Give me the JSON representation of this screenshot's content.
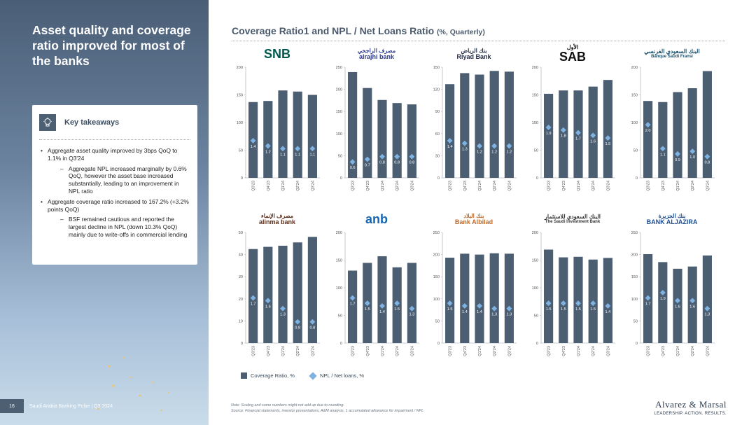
{
  "headline": "Asset quality and coverage ratio improved for most of the banks",
  "takeaways": {
    "title": "Key takeaways",
    "items": [
      {
        "level": 1,
        "text": "Aggregate asset quality improved by 3bps QoQ to 1.1% in Q3'24"
      },
      {
        "level": 2,
        "text": "Aggregate NPL increased marginally by 0.6% QoQ, however the asset base increased substantially, leading to an improvement in NPL ratio"
      },
      {
        "level": 1,
        "text": "Aggregate coverage ratio increased to 167.2% (+3.2% points QoQ)"
      },
      {
        "level": 2,
        "text": "BSF remained cautious and reported the largest decline in NPL (down 10.3% QoQ) mainly due to write-offs in commercial lending"
      }
    ]
  },
  "footer": {
    "page": "16",
    "report": "Saudi Arabia Banking Pulse | Q3 2024"
  },
  "chart_title": "Coverage Ratio1 and NPL / Net Loans Ratio",
  "chart_subtitle": "(%, Quarterly)",
  "legend": {
    "bar": "Coverage Ratio, %",
    "marker": "NPL / Net loans, %"
  },
  "notes": {
    "line1": "Note: Scaling and some numbers might not add up due to rounding.",
    "line2": "Source: Financial statements, investor presentations, A&M analysis, 1 accumulated allowance for impairment / NPL"
  },
  "branding": {
    "name": "Alvarez & Marsal",
    "tagline": "LEADERSHIP. ACTION. RESULTS."
  },
  "colors": {
    "bar": "#4b5e72",
    "marker": "#7fb2e0",
    "panel_bg": "#4d5f73"
  },
  "logos": [
    {
      "text": "SNB",
      "color": "#00594f"
    },
    {
      "text": "alrajhi bank",
      "arabic": "مصرف الراجحي",
      "color": "#2b3a8f"
    },
    {
      "text": "Riyad Bank",
      "arabic": "بنك الرياض",
      "color": "#1f2a44"
    },
    {
      "text": "SAB",
      "arabic": "الأول",
      "color": "#111111"
    },
    {
      "text": "Banque Saudi Fransi",
      "arabic": "البنك السعودي الفرنسي",
      "color": "#1a4f6a"
    },
    {
      "text": "alinma bank",
      "arabic": "مصرف الإنماء",
      "color": "#5b2d1a"
    },
    {
      "text": "anb",
      "color": "#1565b5"
    },
    {
      "text": "Bank Albilad",
      "arabic": "بنك البلاد",
      "color": "#c06a2b"
    },
    {
      "text": "The Saudi Investment Bank",
      "arabic": "البنك السعودي للاستثمار",
      "color": "#333333"
    },
    {
      "text": "BANK ALJAZIRA",
      "arabic": "بنك الجزيرة",
      "color": "#1d4c8f"
    }
  ],
  "chart_data": [
    {
      "type": "bar",
      "bank": "SNB",
      "categories": [
        "Q3'23",
        "Q4'23",
        "Q1'24",
        "Q2'24",
        "Q3'24"
      ],
      "ylim": [
        0,
        200
      ],
      "yticks": [
        0,
        50,
        100,
        150,
        200
      ],
      "series": [
        {
          "name": "Coverage Ratio, %",
          "values": [
            137,
            139,
            158,
            156,
            150
          ]
        },
        {
          "name": "NPL / Net loans, %",
          "values": [
            1.4,
            1.2,
            1.1,
            1.1,
            1.1
          ]
        }
      ]
    },
    {
      "type": "bar",
      "bank": "Al Rajhi",
      "categories": [
        "Q3'23",
        "Q4'23",
        "Q1'24",
        "Q2'24",
        "Q3'24"
      ],
      "ylim": [
        0,
        250
      ],
      "yticks": [
        0,
        50,
        100,
        150,
        200,
        250
      ],
      "series": [
        {
          "name": "Coverage Ratio, %",
          "values": [
            239,
            203,
            176,
            169,
            166
          ]
        },
        {
          "name": "NPL / Net loans, %",
          "values": [
            0.6,
            0.7,
            0.8,
            0.8,
            0.8
          ]
        }
      ]
    },
    {
      "type": "bar",
      "bank": "Riyad Bank",
      "categories": [
        "Q3'23",
        "Q4'23",
        "Q1'24",
        "Q2'24",
        "Q3'24"
      ],
      "ylim": [
        0,
        150
      ],
      "yticks": [
        0,
        30,
        60,
        90,
        120,
        150
      ],
      "series": [
        {
          "name": "Coverage Ratio, %",
          "values": [
            127,
            142,
            140,
            145,
            144
          ]
        },
        {
          "name": "NPL / Net loans, %",
          "values": [
            1.4,
            1.3,
            1.2,
            1.2,
            1.2
          ]
        }
      ]
    },
    {
      "type": "bar",
      "bank": "SAB",
      "categories": [
        "Q3'23",
        "Q4'23",
        "Q1'24",
        "Q2'24",
        "Q3'24"
      ],
      "ylim": [
        0,
        200
      ],
      "yticks": [
        0,
        50,
        100,
        150,
        200
      ],
      "series": [
        {
          "name": "Coverage Ratio, %",
          "values": [
            152,
            158,
            158,
            165,
            177
          ]
        },
        {
          "name": "NPL / Net loans, %",
          "values": [
            1.9,
            1.8,
            1.7,
            1.6,
            1.5
          ]
        }
      ]
    },
    {
      "type": "bar",
      "bank": "BSF",
      "categories": [
        "Q3'23",
        "Q4'23",
        "Q1'24",
        "Q2'24",
        "Q3'24"
      ],
      "ylim": [
        0,
        200
      ],
      "yticks": [
        0,
        50,
        100,
        150,
        200
      ],
      "series": [
        {
          "name": "Coverage Ratio, %",
          "values": [
            139,
            137,
            155,
            162,
            193
          ]
        },
        {
          "name": "NPL / Net loans, %",
          "values": [
            2.0,
            1.1,
            0.9,
            1.0,
            0.8
          ]
        }
      ]
    },
    {
      "type": "bar",
      "bank": "Alinma",
      "categories": [
        "Q3'23",
        "Q4'23",
        "Q1'24",
        "Q2'24",
        "Q3'24"
      ],
      "ylim": [
        0,
        50
      ],
      "yticks": [
        0,
        10,
        20,
        30,
        40,
        50
      ],
      "series": [
        {
          "name": "Coverage Ratio, %",
          "values": [
            42.5,
            43.5,
            44,
            45.5,
            48
          ]
        },
        {
          "name": "NPL / Net loans, %",
          "values": [
            1.7,
            1.6,
            1.3,
            0.8,
            0.8
          ]
        }
      ]
    },
    {
      "type": "bar",
      "bank": "ANB",
      "categories": [
        "Q3'23",
        "Q4'23",
        "Q1'24",
        "Q2'24",
        "Q3'24"
      ],
      "ylim": [
        0,
        200
      ],
      "yticks": [
        0,
        50,
        100,
        150,
        200
      ],
      "series": [
        {
          "name": "Coverage Ratio, %",
          "values": [
            131,
            145,
            157,
            137,
            145
          ]
        },
        {
          "name": "NPL / Net loans, %",
          "values": [
            1.7,
            1.5,
            1.4,
            1.5,
            1.3
          ]
        }
      ]
    },
    {
      "type": "bar",
      "bank": "Bank Albilad",
      "categories": [
        "Q3'23",
        "Q4'23",
        "Q1'24",
        "Q2'24",
        "Q3'24"
      ],
      "ylim": [
        0,
        250
      ],
      "yticks": [
        0,
        50,
        100,
        150,
        200,
        250
      ],
      "series": [
        {
          "name": "Coverage Ratio, %",
          "values": [
            193,
            202,
            200,
            203,
            202
          ]
        },
        {
          "name": "NPL / Net loans, %",
          "values": [
            1.5,
            1.4,
            1.4,
            1.3,
            1.3
          ]
        }
      ]
    },
    {
      "type": "bar",
      "bank": "SAIB",
      "categories": [
        "Q3'23",
        "Q4'23",
        "Q1'24",
        "Q2'24",
        "Q3'24"
      ],
      "ylim": [
        0,
        200
      ],
      "yticks": [
        0,
        50,
        100,
        150,
        200
      ],
      "series": [
        {
          "name": "Coverage Ratio, %",
          "values": [
            169,
            155,
            156,
            151,
            154
          ]
        },
        {
          "name": "NPL / Net loans, %",
          "values": [
            1.5,
            1.5,
            1.5,
            1.5,
            1.4
          ]
        }
      ]
    },
    {
      "type": "bar",
      "bank": "Bank AlJazira",
      "categories": [
        "Q3'23",
        "Q4'23",
        "Q1'24",
        "Q2'24",
        "Q3'24"
      ],
      "ylim": [
        0,
        250
      ],
      "yticks": [
        0,
        50,
        100,
        150,
        200,
        250
      ],
      "series": [
        {
          "name": "Coverage Ratio, %",
          "values": [
            201,
            183,
            168,
            173,
            198
          ]
        },
        {
          "name": "NPL / Net loans, %",
          "values": [
            1.7,
            1.9,
            1.6,
            1.6,
            1.3
          ]
        }
      ]
    }
  ]
}
